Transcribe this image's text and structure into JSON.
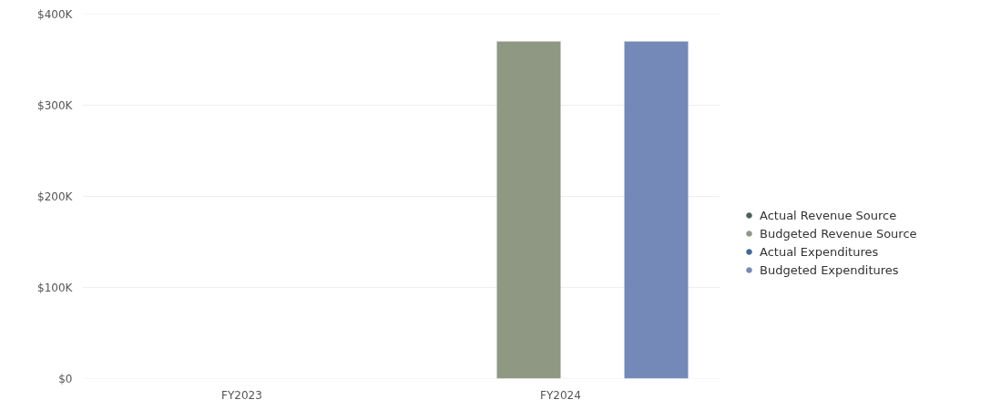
{
  "chart_data": {
    "type": "bar",
    "categories": [
      "FY2023",
      "FY2024"
    ],
    "series": [
      {
        "name": "Actual Revenue Source",
        "color": "#4b6356",
        "values": [
          null,
          null
        ]
      },
      {
        "name": "Budgeted Revenue Source",
        "color": "#8e9883",
        "values": [
          null,
          370000
        ]
      },
      {
        "name": "Actual Expenditures",
        "color": "#3d6a96",
        "values": [
          null,
          null
        ]
      },
      {
        "name": "Budgeted Expenditures",
        "color": "#7489b8",
        "values": [
          null,
          370000
        ]
      }
    ],
    "ylim": [
      0,
      400000
    ],
    "yticks": [
      {
        "value": 0,
        "label": "$0"
      },
      {
        "value": 100000,
        "label": "$100K"
      },
      {
        "value": 200000,
        "label": "$200K"
      },
      {
        "value": 300000,
        "label": "$300K"
      },
      {
        "value": 400000,
        "label": "$400K"
      }
    ],
    "grid": "y",
    "legend": "right"
  }
}
